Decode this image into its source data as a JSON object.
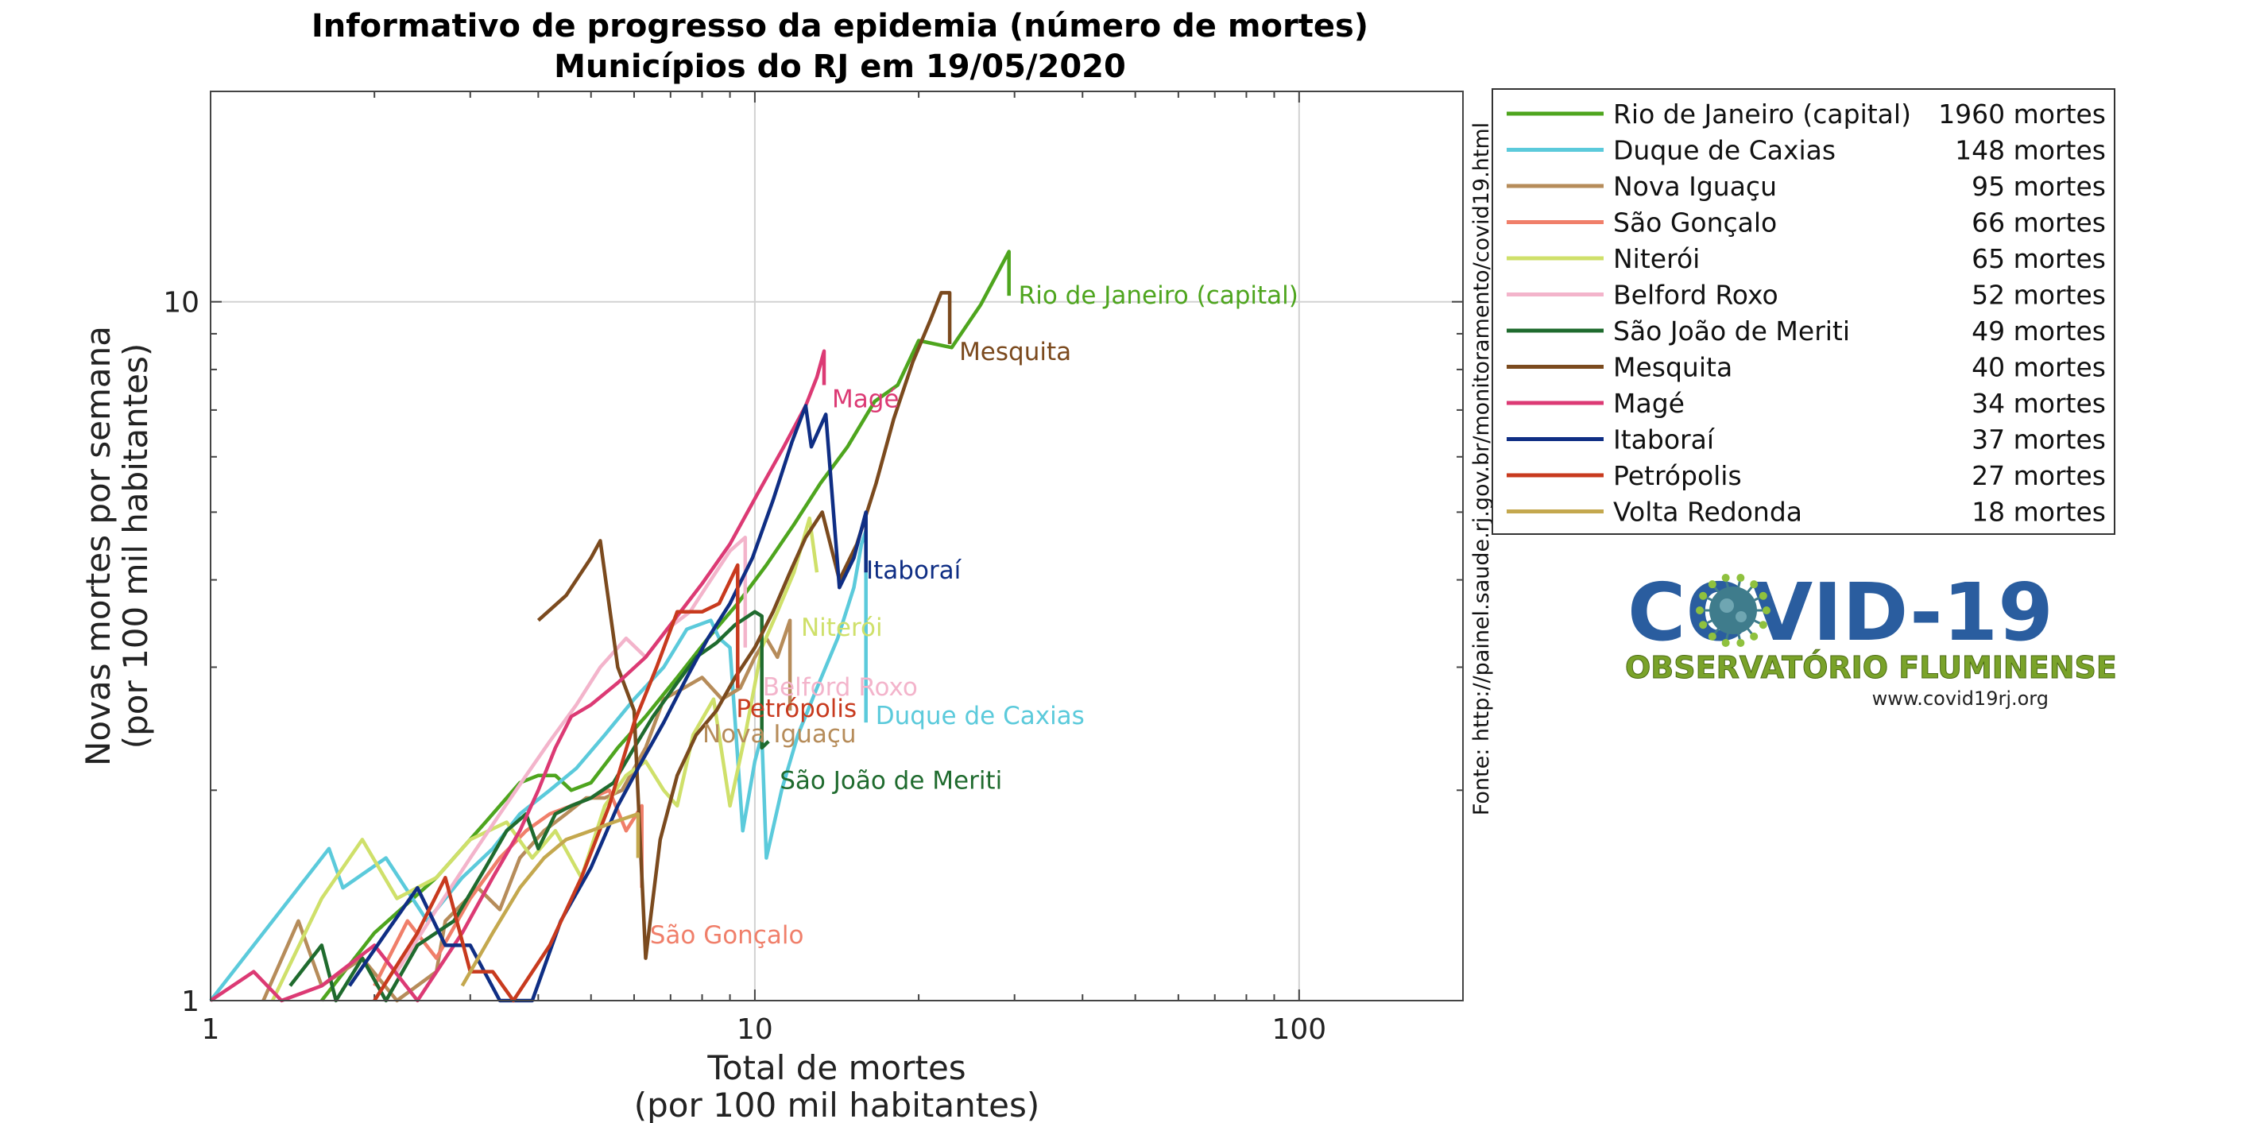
{
  "chart_data": {
    "type": "line",
    "title": "Informativo de progresso da epidemia (número de mortes)",
    "subtitle": "Municípios do RJ em 19/05/2020",
    "xlabel": "Total de mortes",
    "xlabel_sub": "(por 100 mil habitantes)",
    "ylabel": "Novas mortes por semana",
    "ylabel_sub": "(por 100 mil habitantes)",
    "x_scale": "log",
    "y_scale": "log",
    "xlim": [
      1,
      200
    ],
    "ylim": [
      1,
      20
    ],
    "x_ticks": [
      {
        "value": 1,
        "label": "1"
      },
      {
        "value": 10,
        "label": "10"
      },
      {
        "value": 100,
        "label": "100"
      }
    ],
    "y_ticks": [
      {
        "value": 1,
        "label": "1"
      },
      {
        "value": 10,
        "label": "10"
      }
    ],
    "grid": true,
    "legend_position": "right",
    "source": "Fonte: http://painel.saude.rj.gov.br/monitoramento/covid19.html",
    "series": [
      {
        "name": "Rio de Janeiro (capital)",
        "deaths": "1960 mortes",
        "color": "#4ea51e",
        "label": "Rio de Janeiro (capital)",
        "points": [
          [
            1.6,
            1.0
          ],
          [
            2.0,
            1.25
          ],
          [
            2.6,
            1.5
          ],
          [
            3.2,
            1.8
          ],
          [
            3.7,
            2.05
          ],
          [
            4.0,
            2.1
          ],
          [
            4.3,
            2.1
          ],
          [
            4.6,
            2.0
          ],
          [
            5.0,
            2.05
          ],
          [
            5.6,
            2.3
          ],
          [
            6.3,
            2.55
          ],
          [
            7.2,
            2.9
          ],
          [
            8.2,
            3.3
          ],
          [
            9.3,
            3.7
          ],
          [
            10.5,
            4.2
          ],
          [
            11.8,
            4.8
          ],
          [
            13.2,
            5.5
          ],
          [
            14.8,
            6.2
          ],
          [
            16.6,
            7.2
          ],
          [
            18.3,
            7.6
          ],
          [
            20.0,
            8.8
          ],
          [
            23.0,
            8.6
          ],
          [
            26.0,
            9.9
          ],
          [
            29.3,
            11.8
          ],
          [
            29.3,
            10.2
          ]
        ]
      },
      {
        "name": "Duque de Caxias",
        "deaths": "148 mortes",
        "color": "#5bcadb",
        "label": "Duque de Caxias",
        "points": [
          [
            1.0,
            1.0
          ],
          [
            1.4,
            1.4
          ],
          [
            1.65,
            1.65
          ],
          [
            1.75,
            1.45
          ],
          [
            2.1,
            1.6
          ],
          [
            2.5,
            1.3
          ],
          [
            2.9,
            1.5
          ],
          [
            3.3,
            1.65
          ],
          [
            3.7,
            1.85
          ],
          [
            4.2,
            2.0
          ],
          [
            4.7,
            2.15
          ],
          [
            5.3,
            2.4
          ],
          [
            6.0,
            2.7
          ],
          [
            6.8,
            3.0
          ],
          [
            7.5,
            3.4
          ],
          [
            8.3,
            3.5
          ],
          [
            8.6,
            3.3
          ],
          [
            9.0,
            3.2
          ],
          [
            9.5,
            1.75
          ],
          [
            10.0,
            2.2
          ],
          [
            10.3,
            2.4
          ],
          [
            10.5,
            1.6
          ],
          [
            11.2,
            2.0
          ],
          [
            12.0,
            2.4
          ],
          [
            13.0,
            2.8
          ],
          [
            14.2,
            3.3
          ],
          [
            15.2,
            3.9
          ],
          [
            15.7,
            4.5
          ],
          [
            16.0,
            4.7
          ],
          [
            16.0,
            2.5
          ]
        ]
      },
      {
        "name": "Nova Iguaçu",
        "deaths": "95 mortes",
        "color": "#b68c5a",
        "label": "Nova Iguaçu",
        "points": [
          [
            1.25,
            1.0
          ],
          [
            1.45,
            1.3
          ],
          [
            1.6,
            1.05
          ],
          [
            1.9,
            1.15
          ],
          [
            2.2,
            1.0
          ],
          [
            2.6,
            1.1
          ],
          [
            2.7,
            1.3
          ],
          [
            3.1,
            1.45
          ],
          [
            3.4,
            1.35
          ],
          [
            3.7,
            1.6
          ],
          [
            4.1,
            1.75
          ],
          [
            4.5,
            1.85
          ],
          [
            4.9,
            1.95
          ],
          [
            5.3,
            1.95
          ],
          [
            5.7,
            2.0
          ],
          [
            6.3,
            2.3
          ],
          [
            6.8,
            2.7
          ],
          [
            7.4,
            2.8
          ],
          [
            8.0,
            2.9
          ],
          [
            8.7,
            2.7
          ],
          [
            9.4,
            2.8
          ],
          [
            10.0,
            3.1
          ],
          [
            10.5,
            3.3
          ],
          [
            11.0,
            3.1
          ],
          [
            11.6,
            3.5
          ],
          [
            11.6,
            2.6
          ]
        ]
      },
      {
        "name": "São Gonçalo",
        "deaths": "66 mortes",
        "color": "#f07f6a",
        "label": "São Gonçalo",
        "points": [
          [
            2.0,
            1.05
          ],
          [
            2.3,
            1.3
          ],
          [
            2.6,
            1.15
          ],
          [
            3.0,
            1.4
          ],
          [
            3.4,
            1.6
          ],
          [
            3.8,
            1.75
          ],
          [
            4.2,
            1.85
          ],
          [
            4.6,
            1.9
          ],
          [
            5.0,
            1.95
          ],
          [
            5.4,
            2.0
          ],
          [
            5.8,
            1.75
          ],
          [
            6.2,
            1.9
          ],
          [
            6.2,
            1.45
          ]
        ]
      },
      {
        "name": "Niterói",
        "deaths": "65 mortes",
        "color": "#cfe06a",
        "label": "Niterói",
        "points": [
          [
            1.3,
            1.0
          ],
          [
            1.6,
            1.4
          ],
          [
            1.9,
            1.7
          ],
          [
            2.2,
            1.4
          ],
          [
            2.6,
            1.5
          ],
          [
            3.0,
            1.7
          ],
          [
            3.5,
            1.8
          ],
          [
            3.9,
            1.6
          ],
          [
            4.3,
            1.75
          ],
          [
            4.8,
            1.5
          ],
          [
            5.3,
            1.9
          ],
          [
            5.8,
            2.1
          ],
          [
            6.3,
            2.2
          ],
          [
            6.8,
            2.0
          ],
          [
            7.2,
            1.9
          ],
          [
            7.7,
            2.4
          ],
          [
            8.4,
            2.7
          ],
          [
            9.0,
            1.9
          ],
          [
            9.6,
            2.4
          ],
          [
            10.3,
            3.2
          ],
          [
            11.0,
            3.6
          ],
          [
            11.8,
            4.1
          ],
          [
            12.6,
            4.9
          ],
          [
            13.0,
            4.1
          ]
        ]
      },
      {
        "name": "Belford Roxo",
        "deaths": "52 mortes",
        "color": "#f3b4cb",
        "label": "Belford Roxo",
        "points": [
          [
            2.2,
            1.1
          ],
          [
            2.6,
            1.35
          ],
          [
            3.0,
            1.6
          ],
          [
            3.4,
            1.85
          ],
          [
            3.8,
            2.1
          ],
          [
            4.2,
            2.35
          ],
          [
            4.7,
            2.65
          ],
          [
            5.2,
            3.0
          ],
          [
            5.8,
            3.3
          ],
          [
            6.3,
            3.1
          ],
          [
            6.9,
            3.4
          ],
          [
            7.6,
            3.6
          ],
          [
            8.3,
            4.0
          ],
          [
            9.0,
            4.4
          ],
          [
            9.6,
            4.6
          ],
          [
            9.6,
            3.2
          ]
        ]
      },
      {
        "name": "São João de Meriti",
        "deaths": "49 mortes",
        "color": "#1f6b2e",
        "label": "São João de Meriti",
        "points": [
          [
            1.4,
            1.05
          ],
          [
            1.6,
            1.2
          ],
          [
            1.7,
            1.0
          ],
          [
            1.9,
            1.15
          ],
          [
            2.1,
            1.0
          ],
          [
            2.4,
            1.2
          ],
          [
            2.8,
            1.3
          ],
          [
            3.2,
            1.55
          ],
          [
            3.5,
            1.75
          ],
          [
            3.8,
            1.85
          ],
          [
            4.0,
            1.65
          ],
          [
            4.3,
            1.85
          ],
          [
            4.6,
            1.9
          ],
          [
            5.0,
            1.95
          ],
          [
            5.5,
            2.05
          ],
          [
            6.0,
            2.3
          ],
          [
            6.5,
            2.55
          ],
          [
            7.2,
            2.85
          ],
          [
            7.8,
            3.1
          ],
          [
            8.5,
            3.25
          ],
          [
            9.2,
            3.45
          ],
          [
            10.0,
            3.6
          ],
          [
            10.3,
            3.55
          ],
          [
            10.3,
            2.3
          ],
          [
            10.6,
            2.35
          ]
        ]
      },
      {
        "name": "Mesquita",
        "deaths": "40 mortes",
        "color": "#7b4a1e",
        "label": "Mesquita",
        "points": [
          [
            4.0,
            3.5
          ],
          [
            4.5,
            3.8
          ],
          [
            5.0,
            4.3
          ],
          [
            5.2,
            4.55
          ],
          [
            5.6,
            3.0
          ],
          [
            6.0,
            2.6
          ],
          [
            6.3,
            1.15
          ],
          [
            6.7,
            1.7
          ],
          [
            7.2,
            2.1
          ],
          [
            7.8,
            2.4
          ],
          [
            8.5,
            2.6
          ],
          [
            9.2,
            2.9
          ],
          [
            10.0,
            3.2
          ],
          [
            10.8,
            3.6
          ],
          [
            11.6,
            4.1
          ],
          [
            12.4,
            4.6
          ],
          [
            13.3,
            5.0
          ],
          [
            14.3,
            4.0
          ],
          [
            15.4,
            4.5
          ],
          [
            16.7,
            5.5
          ],
          [
            18.0,
            6.8
          ],
          [
            19.5,
            8.2
          ],
          [
            21.0,
            9.4
          ],
          [
            22.0,
            10.3
          ],
          [
            22.8,
            10.3
          ],
          [
            22.8,
            8.7
          ]
        ]
      },
      {
        "name": "Magé",
        "deaths": "34 mortes",
        "color": "#dc3a74",
        "label": "Magé",
        "points": [
          [
            1.0,
            1.0
          ],
          [
            1.2,
            1.1
          ],
          [
            1.35,
            1.0
          ],
          [
            1.6,
            1.05
          ],
          [
            2.0,
            1.2
          ],
          [
            2.4,
            1.0
          ],
          [
            2.9,
            1.25
          ],
          [
            3.3,
            1.5
          ],
          [
            3.7,
            1.75
          ],
          [
            4.0,
            2.0
          ],
          [
            4.3,
            2.3
          ],
          [
            4.6,
            2.55
          ],
          [
            5.0,
            2.65
          ],
          [
            5.6,
            2.85
          ],
          [
            6.3,
            3.1
          ],
          [
            7.1,
            3.5
          ],
          [
            8.0,
            3.95
          ],
          [
            9.0,
            4.5
          ],
          [
            10.1,
            5.3
          ],
          [
            11.3,
            6.2
          ],
          [
            12.4,
            7.1
          ],
          [
            13.0,
            7.8
          ],
          [
            13.4,
            8.5
          ],
          [
            13.4,
            7.6
          ]
        ]
      },
      {
        "name": "Itaboraí",
        "deaths": "37 mortes",
        "color": "#0f2e84",
        "label": "Itaboraí",
        "points": [
          [
            1.8,
            1.05
          ],
          [
            2.1,
            1.25
          ],
          [
            2.4,
            1.45
          ],
          [
            2.7,
            1.2
          ],
          [
            3.0,
            1.2
          ],
          [
            3.4,
            1.0
          ],
          [
            3.9,
            1.0
          ],
          [
            4.4,
            1.3
          ],
          [
            5.0,
            1.55
          ],
          [
            5.6,
            1.9
          ],
          [
            6.2,
            2.2
          ],
          [
            6.8,
            2.5
          ],
          [
            7.5,
            2.9
          ],
          [
            8.2,
            3.3
          ],
          [
            9.0,
            3.7
          ],
          [
            9.9,
            4.3
          ],
          [
            10.8,
            5.2
          ],
          [
            11.7,
            6.3
          ],
          [
            12.4,
            7.1
          ],
          [
            12.7,
            6.2
          ],
          [
            13.5,
            6.9
          ],
          [
            14.3,
            3.9
          ],
          [
            15.2,
            4.3
          ],
          [
            16.0,
            5.0
          ],
          [
            16.0,
            4.1
          ]
        ]
      },
      {
        "name": "Petrópolis",
        "deaths": "27 mortes",
        "color": "#c83a1e",
        "label": "Petrópolis",
        "points": [
          [
            2.0,
            1.0
          ],
          [
            2.4,
            1.25
          ],
          [
            2.7,
            1.5
          ],
          [
            3.0,
            1.1
          ],
          [
            3.3,
            1.1
          ],
          [
            3.6,
            1.0
          ],
          [
            4.2,
            1.2
          ],
          [
            4.8,
            1.5
          ],
          [
            5.4,
            1.9
          ],
          [
            6.0,
            2.5
          ],
          [
            6.6,
            3.0
          ],
          [
            7.2,
            3.6
          ],
          [
            8.0,
            3.6
          ],
          [
            8.6,
            3.7
          ],
          [
            9.3,
            4.2
          ],
          [
            9.3,
            2.8
          ]
        ]
      },
      {
        "name": "Volta Redonda",
        "deaths": "18 mortes",
        "color": "#c4a84e",
        "label": "Volta Redonda",
        "points": [
          [
            2.9,
            1.05
          ],
          [
            3.3,
            1.25
          ],
          [
            3.7,
            1.45
          ],
          [
            4.1,
            1.6
          ],
          [
            4.5,
            1.7
          ],
          [
            5.0,
            1.75
          ],
          [
            5.5,
            1.8
          ],
          [
            6.1,
            1.85
          ],
          [
            6.1,
            1.6
          ]
        ]
      }
    ]
  },
  "logo": {
    "title": "COVID-19",
    "subtitle": "OBSERVATÓRIO FLUMINENSE",
    "url": "www.covid19rj.org",
    "virus_color": "#3f7c8c"
  }
}
